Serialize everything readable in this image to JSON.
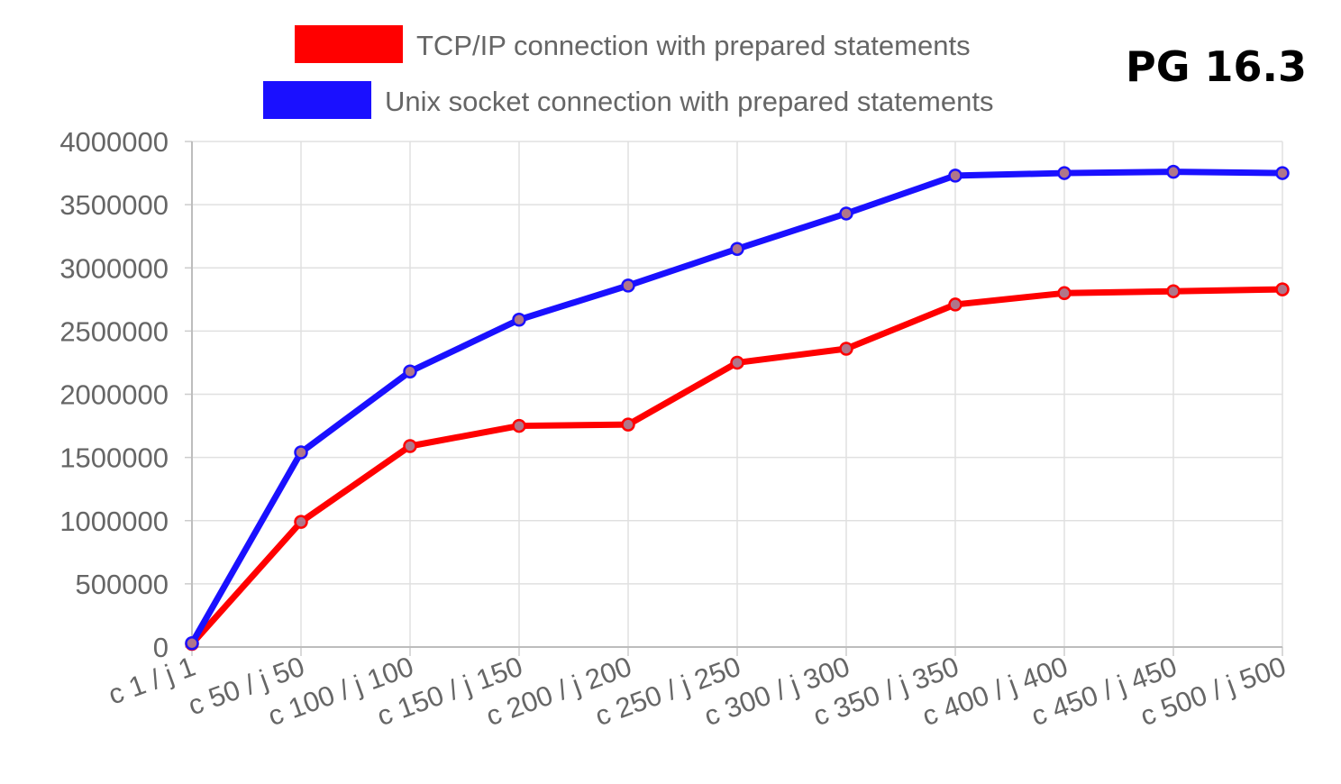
{
  "badge": "PG 16.3",
  "chart_data": {
    "type": "line",
    "title": "",
    "xlabel": "",
    "ylabel": "",
    "categories": [
      "c 1 / j 1",
      "c 50 / j 50",
      "c 100 / j 100",
      "c 150 / j 150",
      "c 200 / j 200",
      "c 250 / j 250",
      "c 300 / j 300",
      "c 350 / j 350",
      "c 400 / j 400",
      "c 450 / j 450",
      "c 500 / j 500"
    ],
    "ylim": [
      0,
      4000000
    ],
    "yticks": [
      "0",
      "500000",
      "1000000",
      "1500000",
      "2000000",
      "2500000",
      "3000000",
      "3500000",
      "4000000"
    ],
    "grid": true,
    "legend_position": "top-center",
    "series": [
      {
        "name": "TCP/IP connection with prepared statements",
        "color": "#ff0000",
        "values": [
          25000,
          990000,
          1590000,
          1750000,
          1760000,
          2250000,
          2360000,
          2710000,
          2800000,
          2815000,
          2830000
        ]
      },
      {
        "name": "Unix socket connection with prepared statements",
        "color": "#1a10ff",
        "values": [
          30000,
          1540000,
          2180000,
          2590000,
          2860000,
          3150000,
          3430000,
          3730000,
          3750000,
          3760000,
          3750000
        ]
      }
    ]
  }
}
